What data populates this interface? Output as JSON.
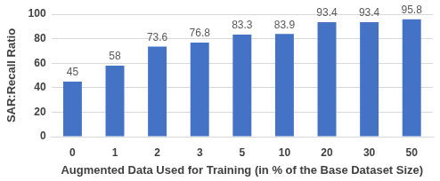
{
  "chart_data": {
    "type": "bar",
    "x_label": "Augmented Data Used for Training (in % of the Base Dataset Size)",
    "y_label": "SAR:Recall Ratio",
    "categories": [
      "0",
      "1",
      "2",
      "3",
      "5",
      "10",
      "20",
      "30",
      "50"
    ],
    "values": [
      45,
      58,
      73.6,
      76.8,
      83.3,
      83.9,
      93.4,
      93.4,
      95.8
    ],
    "color": "#4472c4",
    "ylim": [
      0,
      100
    ],
    "yticks": [
      0,
      20,
      40,
      60,
      80,
      100
    ],
    "grid": true,
    "data_labels": true
  }
}
